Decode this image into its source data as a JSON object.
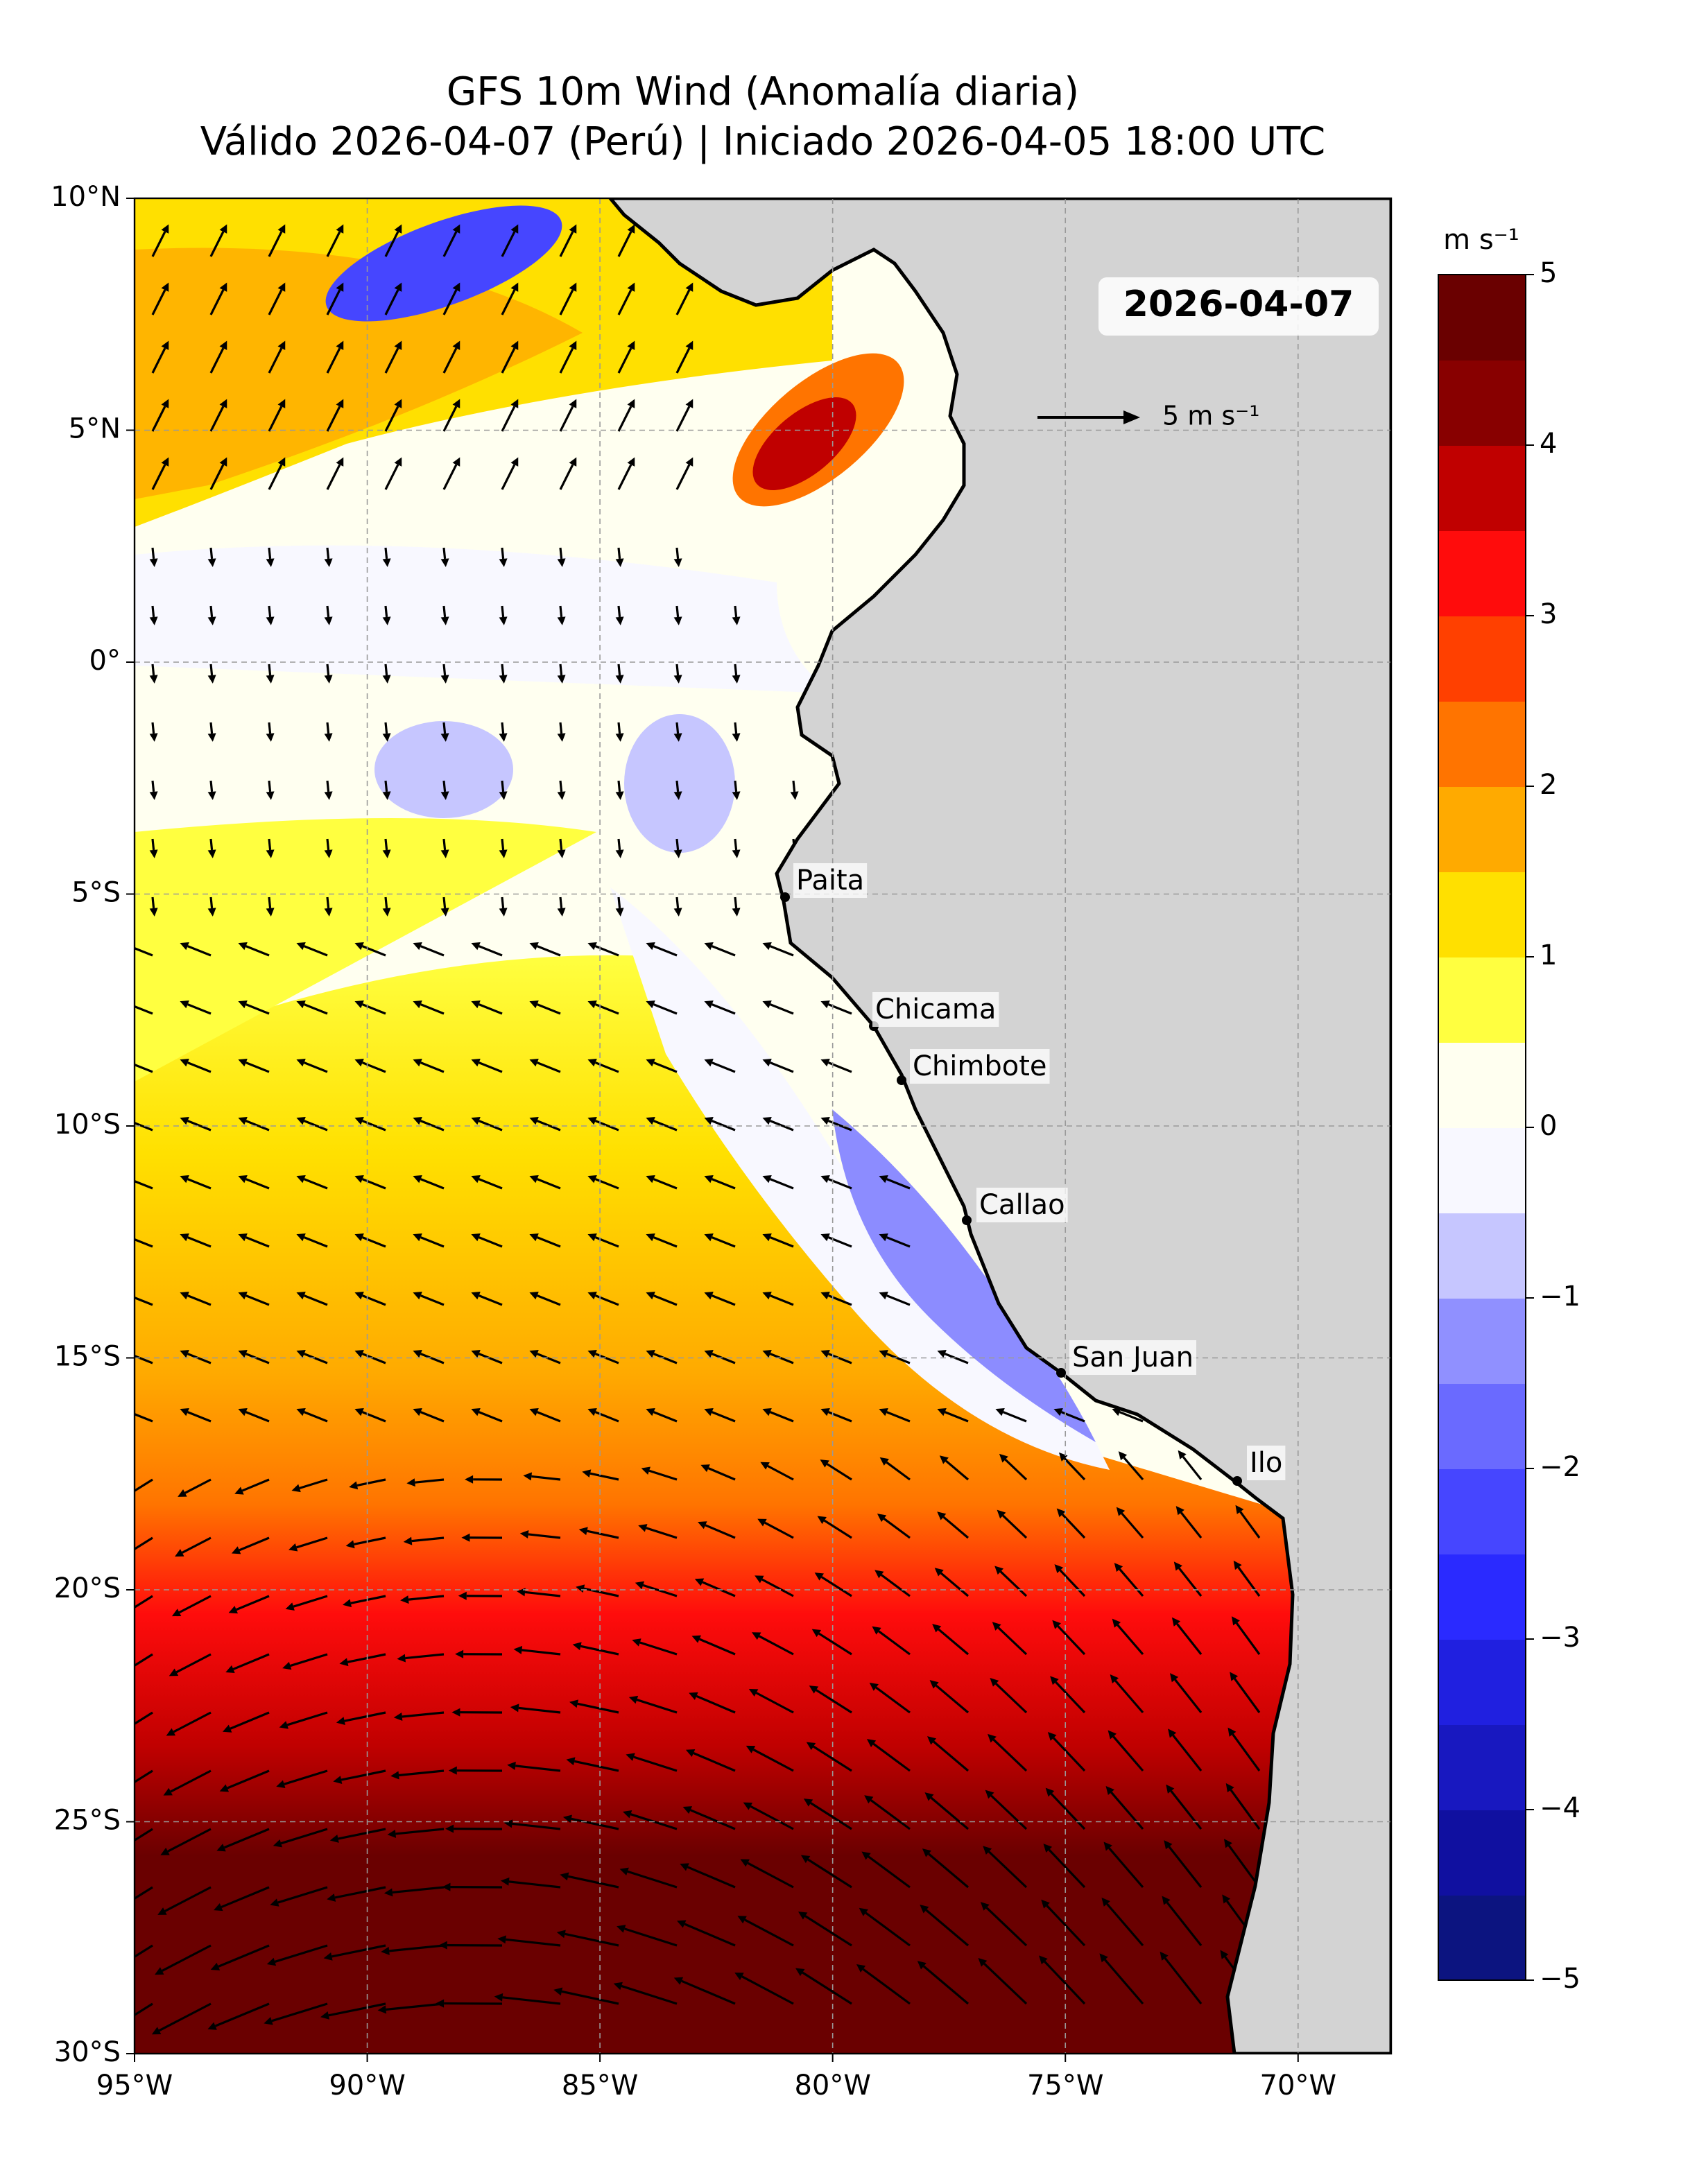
{
  "chart_data": {
    "type": "map",
    "title": "GFS 10m Wind (Anomalía diaria)",
    "subtitle": "Válido 2026-04-07 (Perú) | Iniciado 2026-04-05 18:00 UTC",
    "xlim": [
      -95,
      -68
    ],
    "ylim": [
      -30,
      10
    ],
    "xticks": [
      {
        "value": -95,
        "label": "95°W"
      },
      {
        "value": -90,
        "label": "90°W"
      },
      {
        "value": -85,
        "label": "85°W"
      },
      {
        "value": -80,
        "label": "80°W"
      },
      {
        "value": -75,
        "label": "75°W"
      },
      {
        "value": -70,
        "label": "70°W"
      }
    ],
    "yticks": [
      {
        "value": 10,
        "label": "10°N"
      },
      {
        "value": 5,
        "label": "5°N"
      },
      {
        "value": 0,
        "label": "0°"
      },
      {
        "value": -5,
        "label": "5°S"
      },
      {
        "value": -10,
        "label": "10°S"
      },
      {
        "value": -15,
        "label": "15°S"
      },
      {
        "value": -20,
        "label": "20°S"
      },
      {
        "value": -25,
        "label": "25°S"
      },
      {
        "value": -30,
        "label": "30°S"
      }
    ],
    "grid": true,
    "date_label": "2026-04-07",
    "reference_arrow_label": "5 m s⁻¹",
    "cities": [
      "Paita",
      "Chicama",
      "Chimbote",
      "Callao",
      "San Juan",
      "Ilo"
    ],
    "colorbar": {
      "label": "m s⁻¹",
      "lim": [
        -5,
        5
      ],
      "ticks": [
        {
          "value": -5,
          "label": "−5"
        },
        {
          "value": -4,
          "label": "−4"
        },
        {
          "value": -3,
          "label": "−3"
        },
        {
          "value": -2,
          "label": "−2"
        },
        {
          "value": -1,
          "label": "−1"
        },
        0,
        1,
        2,
        3,
        4,
        5
      ],
      "colors": [
        "#0c1480",
        "#1010a0",
        "#1818c0",
        "#2020e0",
        "#2a2aff",
        "#4646ff",
        "#6a6aff",
        "#9090ff",
        "#c6c6ff",
        "#f8f8ff",
        "#fffff0",
        "#ffff40",
        "#ffe000",
        "#ffaa00",
        "#ff7400",
        "#ff4000",
        "#ff0c0c",
        "#c00000",
        "#880000",
        "#6a0000"
      ]
    }
  }
}
